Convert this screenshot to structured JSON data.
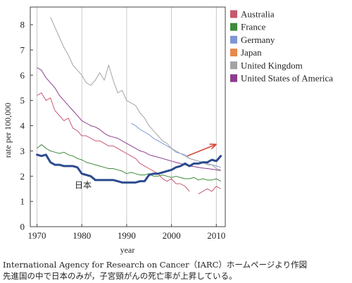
{
  "chart_data": {
    "type": "line",
    "title": "",
    "xlabel": "year",
    "ylabel": "rate per 100,000",
    "xlim": [
      1968.5,
      2012
    ],
    "ylim": [
      0,
      8.7
    ],
    "xticks": [
      1970,
      1980,
      1990,
      2000,
      2010
    ],
    "yticks": [
      0,
      1,
      2,
      3,
      4,
      5,
      6,
      7,
      8
    ],
    "grid": {
      "vertical": true,
      "horizontal": false
    },
    "legend": {
      "placement": "right"
    },
    "series": [
      {
        "name": "Australia",
        "color": "#c8566e",
        "width": 1,
        "x": [
          1970,
          1971,
          1972,
          1973,
          1974,
          1975,
          1976,
          1977,
          1978,
          1979,
          1980,
          1981,
          1982,
          1983,
          1984,
          1985,
          1986,
          1987,
          1988,
          1989,
          1990,
          1991,
          1992,
          1993,
          1994,
          1995,
          1996,
          1997,
          1998,
          1999,
          2000,
          2001,
          2002,
          2003,
          2004,
          2005,
          2006,
          2007,
          2008,
          2009,
          2010,
          2011
        ],
        "values": [
          5.2,
          5.3,
          5.0,
          5.1,
          4.6,
          4.4,
          4.2,
          4.3,
          3.9,
          3.8,
          3.6,
          3.6,
          3.5,
          3.4,
          3.4,
          3.3,
          3.2,
          3.2,
          3.1,
          3.0,
          2.9,
          2.8,
          2.7,
          2.5,
          2.4,
          2.3,
          2.2,
          2.1,
          1.9,
          1.8,
          1.9,
          1.7,
          1.7,
          1.6,
          1.4,
          null,
          1.3,
          1.4,
          1.5,
          1.4,
          1.6,
          1.5
        ]
      },
      {
        "name": "France",
        "color": "#3f8a3a",
        "width": 1,
        "x": [
          1970,
          1971,
          1972,
          1973,
          1974,
          1975,
          1976,
          1977,
          1978,
          1979,
          1980,
          1981,
          1982,
          1983,
          1984,
          1985,
          1986,
          1987,
          1988,
          1989,
          1990,
          1991,
          1992,
          1993,
          1994,
          1995,
          1996,
          1997,
          1998,
          1999,
          2000,
          2001,
          2002,
          2003,
          2004,
          2005,
          2006,
          2007,
          2008,
          2009,
          2010,
          2011
        ],
        "values": [
          3.1,
          3.25,
          3.1,
          3.0,
          2.95,
          2.9,
          2.95,
          2.85,
          2.8,
          2.7,
          2.65,
          2.55,
          2.5,
          2.45,
          2.4,
          2.35,
          2.3,
          2.3,
          2.25,
          2.2,
          2.1,
          2.15,
          2.1,
          2.05,
          2.05,
          2.1,
          2.0,
          2.0,
          2.05,
          2.0,
          1.95,
          2.0,
          1.95,
          1.9,
          1.9,
          1.95,
          1.85,
          1.9,
          1.85,
          1.85,
          1.9,
          1.8
        ]
      },
      {
        "name": "Germany",
        "color": "#7f96d4",
        "width": 1,
        "x": [
          1970,
          1971,
          1972,
          1973,
          1974,
          1975,
          1976,
          1977,
          1978,
          1979,
          1980,
          1981,
          1982,
          1983,
          1984,
          1985,
          1986,
          1987,
          1988,
          1989,
          1990,
          1991,
          1992,
          1993,
          1994,
          1995,
          1996,
          1997,
          1998,
          1999,
          2000,
          2001,
          2002,
          2003,
          2004,
          2005,
          2006,
          2007,
          2008,
          2009,
          2010,
          2011
        ],
        "values": [
          null,
          null,
          null,
          null,
          null,
          null,
          null,
          null,
          null,
          null,
          null,
          null,
          null,
          null,
          null,
          null,
          null,
          null,
          null,
          null,
          null,
          4.1,
          4.0,
          3.85,
          3.75,
          3.65,
          3.5,
          3.4,
          3.3,
          3.2,
          3.1,
          2.95,
          2.9,
          2.85,
          2.7,
          2.65,
          2.6,
          2.55,
          2.5,
          2.45,
          2.4,
          2.35
        ]
      },
      {
        "name": "Japan",
        "color": "#e8884a",
        "width": 1,
        "x": [
          1970,
          1971,
          1972,
          1973,
          1974,
          1975,
          1976,
          1977,
          1978,
          1979,
          1980,
          1981,
          1982,
          1983,
          1984,
          1985,
          1986,
          1987,
          1988,
          1989,
          1990,
          1991,
          1992,
          1993,
          1994,
          1995,
          1996,
          1997,
          1998,
          1999,
          2000,
          2001,
          2002,
          2003,
          2004,
          2005,
          2006,
          2007,
          2008,
          2009,
          2010,
          2011
        ],
        "values": [
          2.85,
          2.8,
          2.85,
          2.55,
          2.45,
          2.45,
          2.4,
          2.4,
          2.4,
          2.35,
          2.1,
          2.05,
          2.0,
          1.85,
          1.85,
          1.85,
          1.85,
          1.85,
          1.8,
          1.75,
          1.75,
          1.75,
          1.75,
          1.8,
          1.8,
          2.05,
          2.1,
          2.1,
          2.15,
          2.2,
          2.25,
          2.35,
          2.4,
          2.5,
          2.4,
          2.5,
          2.5,
          2.55,
          2.55,
          2.65,
          2.6,
          2.8
        ]
      },
      {
        "name": "United Kingdom",
        "color": "#a3a3a3",
        "width": 1,
        "x": [
          1970,
          1971,
          1972,
          1973,
          1974,
          1975,
          1976,
          1977,
          1978,
          1979,
          1980,
          1981,
          1982,
          1983,
          1984,
          1985,
          1986,
          1987,
          1988,
          1989,
          1990,
          1991,
          1992,
          1993,
          1994,
          1995,
          1996,
          1997,
          1998,
          1999,
          2000,
          2001,
          2002,
          2003,
          2004,
          2005,
          2006,
          2007,
          2008,
          2009,
          2010,
          2011
        ],
        "values": [
          null,
          null,
          null,
          8.3,
          7.9,
          7.5,
          7.1,
          6.8,
          6.4,
          6.2,
          6.0,
          5.7,
          5.6,
          5.8,
          6.1,
          5.8,
          6.4,
          5.8,
          5.3,
          5.4,
          5.0,
          4.9,
          4.8,
          4.5,
          4.3,
          4.0,
          3.8,
          3.6,
          3.4,
          3.3,
          3.1,
          3.0,
          2.9,
          2.8,
          2.7,
          2.65,
          2.6,
          2.55,
          2.45,
          2.45,
          2.3,
          2.25
        ]
      },
      {
        "name": "United States of America",
        "color": "#8c3d8c",
        "width": 1,
        "x": [
          1970,
          1971,
          1972,
          1973,
          1974,
          1975,
          1976,
          1977,
          1978,
          1979,
          1980,
          1981,
          1982,
          1983,
          1984,
          1985,
          1986,
          1987,
          1988,
          1989,
          1990,
          1991,
          1992,
          1993,
          1994,
          1995,
          1996,
          1997,
          1998,
          1999,
          2000,
          2001,
          2002,
          2003,
          2004,
          2005,
          2006,
          2007,
          2008,
          2009,
          2010,
          2011
        ],
        "values": [
          6.3,
          6.2,
          5.9,
          5.7,
          5.5,
          5.2,
          5.0,
          4.8,
          4.6,
          4.4,
          4.2,
          4.1,
          4.0,
          3.95,
          3.85,
          3.7,
          3.6,
          3.55,
          3.5,
          3.4,
          3.3,
          3.2,
          3.1,
          3.0,
          2.95,
          2.85,
          2.8,
          2.75,
          2.7,
          2.65,
          2.6,
          2.55,
          2.5,
          2.45,
          2.4,
          2.38,
          2.35,
          2.32,
          2.3,
          2.28,
          2.25,
          2.22
        ]
      }
    ],
    "highlight": {
      "label": "日本",
      "series": "Japan",
      "color": "#2c4b8f",
      "width": 3,
      "trend_arrow": {
        "from": [
          2003.5,
          2.8
        ],
        "to": [
          2009.8,
          3.25
        ],
        "color": "#d64a3a"
      }
    }
  },
  "caption": {
    "line1": "International Agency for Research on Cancer（IARC）ホームページより作図",
    "line2": "先進国の中で日本のみが，子宮頸がんの死亡率が上昇している。"
  }
}
